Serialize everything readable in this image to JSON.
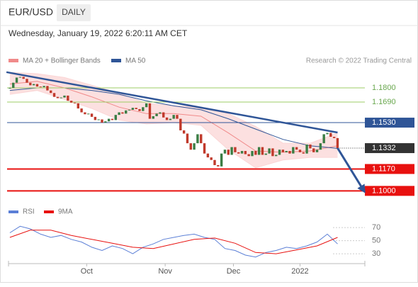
{
  "header": {
    "symbol": "EUR/USD",
    "period": "DAILY",
    "timestamp": "Wednesday, January 19, 2022 6:20:11 AM CET",
    "credit": "Research © 2022 Trading Central"
  },
  "chart_data": [
    {
      "type": "candlestick",
      "xlim": [
        -0.4,
        104
      ],
      "ylim": [
        1.0914,
        1.1932
      ],
      "closes": [
        1.18,
        1.184,
        1.188,
        1.1885,
        1.187,
        1.184,
        1.182,
        1.183,
        1.181,
        1.1805,
        1.1815,
        1.178,
        1.176,
        1.173,
        1.172,
        1.1725,
        1.174,
        1.17,
        1.1685,
        1.168,
        1.164,
        1.161,
        1.1595,
        1.16,
        1.1575,
        1.155,
        1.1555,
        1.153,
        1.154,
        1.156,
        1.155,
        1.159,
        1.161,
        1.16,
        1.1625,
        1.163,
        1.1645,
        1.1635,
        1.162,
        1.165,
        1.168,
        1.156,
        1.158,
        1.16,
        1.161,
        1.157,
        1.155,
        1.156,
        1.159,
        1.156,
        1.147,
        1.1445,
        1.137,
        1.132,
        1.137,
        1.144,
        1.137,
        1.129,
        1.126,
        1.124,
        1.12,
        1.119,
        1.129,
        1.132,
        1.128,
        1.134,
        1.13,
        1.129,
        1.131,
        1.1285,
        1.127,
        1.131,
        1.128,
        1.134,
        1.128,
        1.129,
        1.133,
        1.127,
        1.128,
        1.132,
        1.13,
        1.131,
        1.129,
        1.134,
        1.132,
        1.13,
        1.129,
        1.136,
        1.133,
        1.13,
        1.132,
        1.137,
        1.144,
        1.145,
        1.142,
        1.141,
        1.1332
      ],
      "up_color": "#3a7d44",
      "down_color": "#c0392b",
      "series": [
        {
          "name": "MA 20 + Bollinger Bands",
          "color": "#f08a8a",
          "band_color": "#fbd5d5",
          "x": [
            0,
            8,
            16,
            24,
            32,
            40,
            48,
            56,
            64,
            72,
            80,
            88,
            96
          ],
          "values": [
            1.183,
            1.185,
            1.18,
            1.173,
            1.165,
            1.16,
            1.16,
            1.158,
            1.145,
            1.131,
            1.13,
            1.131,
            1.135
          ],
          "upper": [
            1.192,
            1.191,
            1.188,
            1.182,
            1.176,
            1.168,
            1.166,
            1.165,
            1.16,
            1.15,
            1.137,
            1.137,
            1.145
          ],
          "lower": [
            1.175,
            1.178,
            1.171,
            1.164,
            1.155,
            1.152,
            1.153,
            1.151,
            1.132,
            1.118,
            1.124,
            1.126,
            1.126
          ]
        },
        {
          "name": "MA 50",
          "color": "#2f5597",
          "x": [
            0,
            8,
            16,
            24,
            32,
            40,
            48,
            56,
            64,
            72,
            80,
            88,
            96
          ],
          "values": [
            1.178,
            1.18,
            1.18,
            1.178,
            1.175,
            1.17,
            1.166,
            1.163,
            1.156,
            1.148,
            1.14,
            1.135,
            1.133
          ]
        }
      ],
      "trendline": {
        "x": [
          -1,
          96
        ],
        "values": [
          1.1922,
          1.1453
        ],
        "color": "#2f5597"
      },
      "arrow": {
        "x": [
          96,
          103.5
        ],
        "values": [
          1.1332,
          1.101
        ],
        "color": "#2f5597"
      },
      "levels": [
        {
          "value": 1.18,
          "label": "1.1800",
          "color": "#9ccc65",
          "style": "text"
        },
        {
          "value": 1.169,
          "label": "1.1690",
          "color": "#9ccc65",
          "style": "text"
        },
        {
          "value": 1.153,
          "label": "1.1530",
          "color": "#2f5597",
          "style": "box"
        },
        {
          "value": 1.1332,
          "label": "1.1332",
          "color": "#333333",
          "style": "current"
        },
        {
          "value": 1.117,
          "label": "1.1170",
          "color": "#e8110f",
          "style": "box-thick"
        },
        {
          "value": 1.1,
          "label": "1.1000",
          "color": "#e8110f",
          "style": "box-thick"
        }
      ]
    },
    {
      "type": "line",
      "xlim": [
        -0.4,
        104
      ],
      "ylim": [
        15,
        82
      ],
      "yticks": [
        70,
        50,
        30
      ],
      "xticks": [
        {
          "value": 22.5,
          "label": "Oct"
        },
        {
          "value": 45.5,
          "label": "Nov"
        },
        {
          "value": 65.5,
          "label": "Dec"
        },
        {
          "value": 85,
          "label": "2022"
        }
      ],
      "series": [
        {
          "name": "RSI",
          "color": "#5b7fd6",
          "x": [
            0,
            3,
            6,
            9,
            12,
            15,
            18,
            21,
            24,
            27,
            30,
            33,
            36,
            39,
            42,
            45,
            48,
            51,
            54,
            57,
            60,
            63,
            66,
            69,
            72,
            75,
            78,
            81,
            84,
            87,
            90,
            93,
            96
          ],
          "values": [
            62,
            72,
            68,
            60,
            55,
            58,
            52,
            48,
            40,
            35,
            42,
            38,
            30,
            40,
            45,
            52,
            55,
            58,
            60,
            55,
            52,
            38,
            35,
            28,
            25,
            32,
            35,
            40,
            38,
            42,
            48,
            60,
            45
          ]
        },
        {
          "name": "9MA",
          "color": "#e8110f",
          "x": [
            0,
            6,
            12,
            18,
            24,
            30,
            36,
            42,
            48,
            54,
            60,
            66,
            72,
            78,
            84,
            90,
            96
          ],
          "values": [
            55,
            66,
            66,
            58,
            52,
            46,
            40,
            38,
            45,
            52,
            54,
            46,
            32,
            30,
            36,
            42,
            55
          ]
        }
      ]
    }
  ]
}
